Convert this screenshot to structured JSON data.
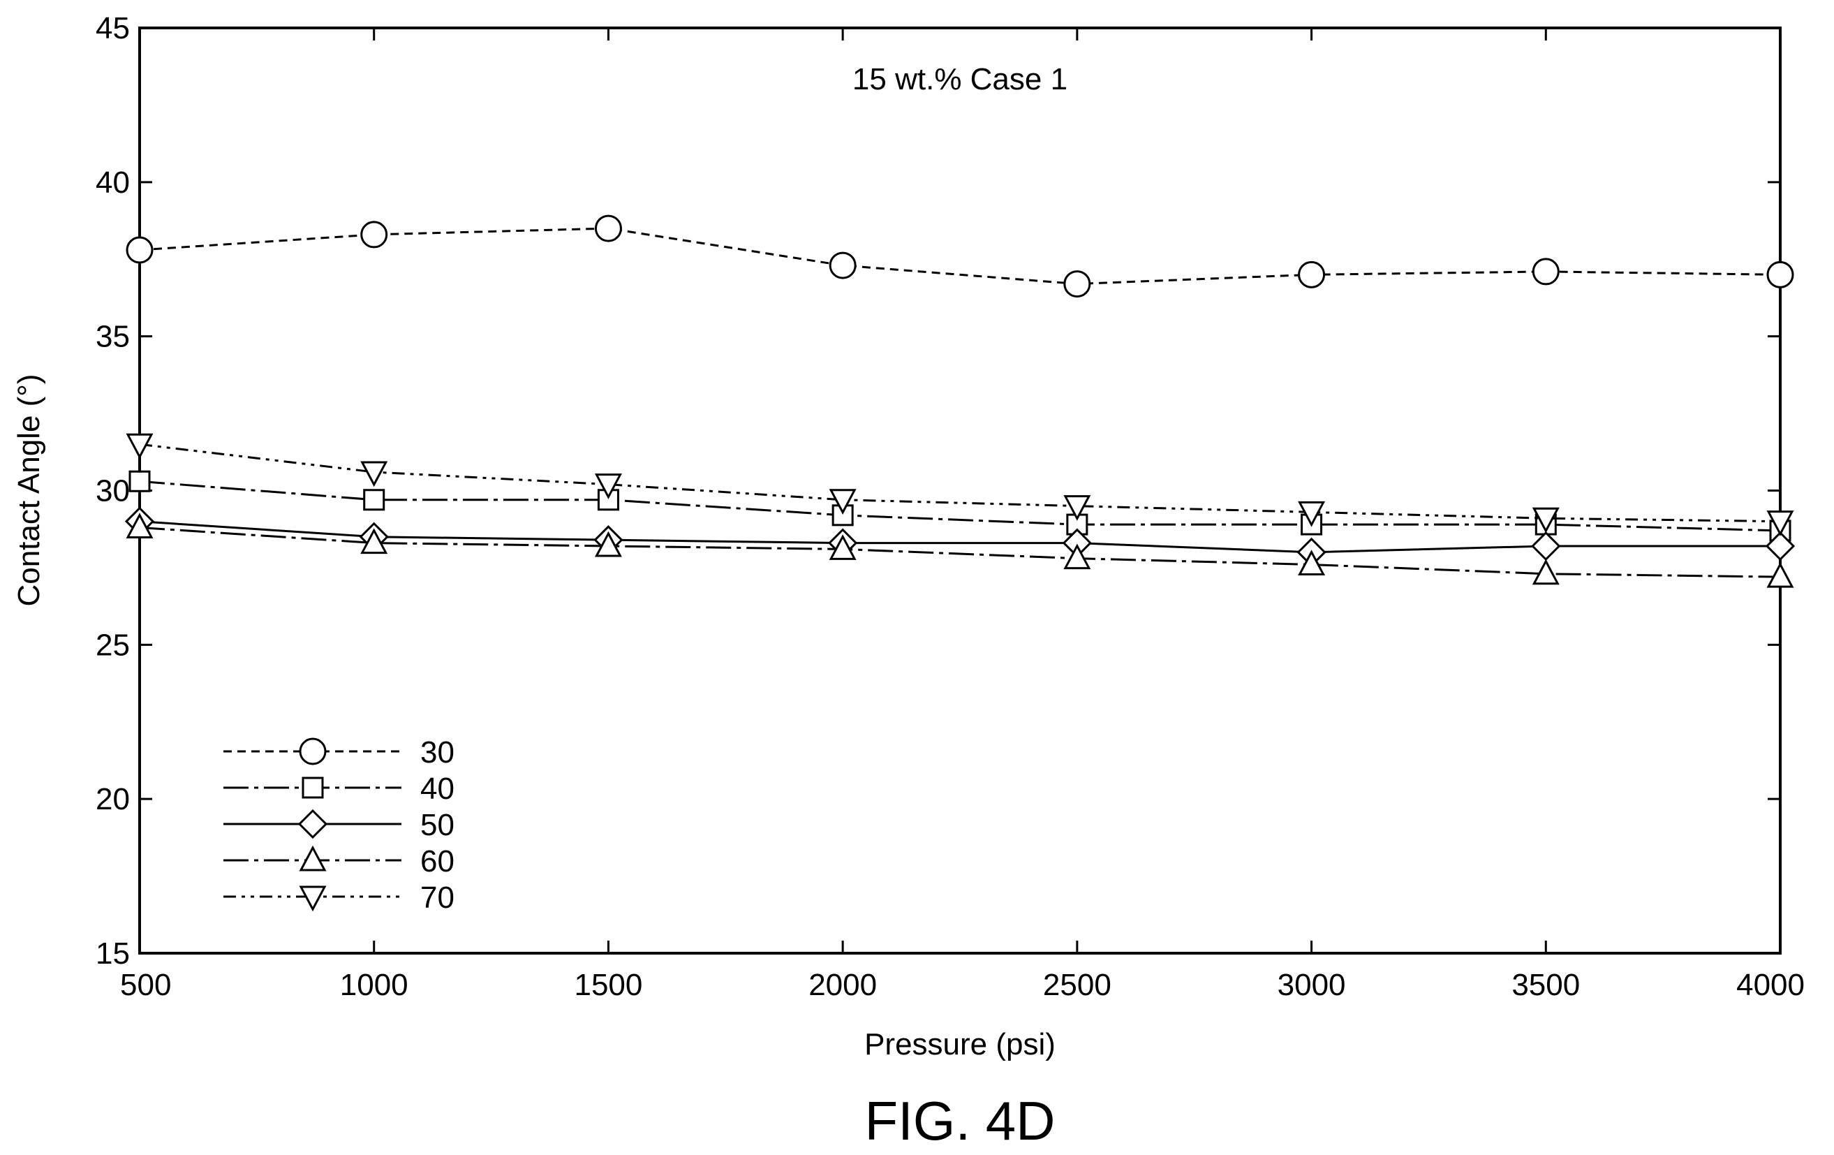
{
  "chart_data": {
    "type": "line",
    "title": "15 wt.% Case 1",
    "xlabel": "Pressure (psi)",
    "ylabel": "Contact Angle (°)",
    "x": [
      500,
      1000,
      1500,
      2000,
      2500,
      3000,
      3500,
      4000
    ],
    "xlim": [
      500,
      4000
    ],
    "ylim": [
      15,
      45
    ],
    "xticks": [
      "500",
      "1000",
      "1500",
      "2000",
      "2500",
      "3000",
      "3500",
      "4000"
    ],
    "yticks": [
      "15",
      "20",
      "25",
      "30",
      "35",
      "40",
      "45"
    ],
    "grid": false,
    "legend_position": "bottom-left",
    "series": [
      {
        "name": "30",
        "marker": "circle",
        "line_style": "dashed",
        "values": [
          37.8,
          38.3,
          38.5,
          37.3,
          36.7,
          37.0,
          37.1,
          37.0
        ]
      },
      {
        "name": "40",
        "marker": "square",
        "line_style": "long-dash-dot",
        "values": [
          30.3,
          29.7,
          29.7,
          29.2,
          28.9,
          28.9,
          28.9,
          28.7
        ]
      },
      {
        "name": "50",
        "marker": "diamond",
        "line_style": "solid",
        "values": [
          29.0,
          28.5,
          28.4,
          28.3,
          28.3,
          28.0,
          28.2,
          28.2
        ]
      },
      {
        "name": "60",
        "marker": "triangle-up",
        "line_style": "long-dash-dot",
        "values": [
          28.8,
          28.3,
          28.2,
          28.1,
          27.8,
          27.6,
          27.3,
          27.2
        ]
      },
      {
        "name": "70",
        "marker": "triangle-down",
        "line_style": "dash-dot-dot",
        "values": [
          31.5,
          30.6,
          30.2,
          29.7,
          29.5,
          29.3,
          29.1,
          29.0
        ]
      }
    ],
    "caption": "FIG. 4D"
  }
}
